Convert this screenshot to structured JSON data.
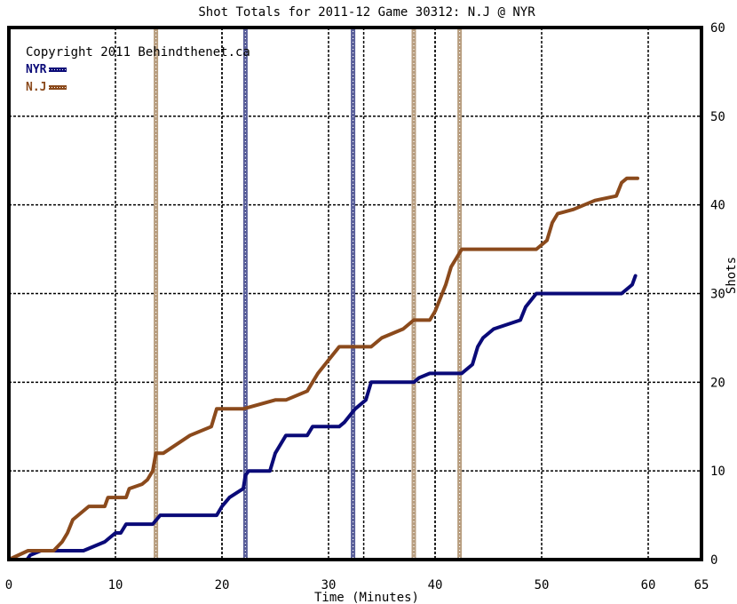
{
  "chart_data": {
    "type": "line",
    "title": "Shot Totals for 2011-12 Game 30312: N.J @ NYR",
    "copyright": "Copyright 2011 Behindthenet.ca",
    "xlabel": "Time (Minutes)",
    "ylabel": "Shots",
    "xlim": [
      0,
      65
    ],
    "ylim": [
      0,
      60
    ],
    "x_ticks": [
      "0",
      "10",
      "20",
      "30",
      "40",
      "50",
      "60",
      "65"
    ],
    "y_ticks": [
      "0",
      "10",
      "20",
      "30",
      "40",
      "50",
      "60"
    ],
    "grid": true,
    "legend_position": "top-left",
    "colors": {
      "NYR": "#0a0a78",
      "N.J": "#8b4a1c"
    },
    "series": [
      {
        "name": "NYR",
        "color": "#0a0a78",
        "points": [
          [
            0,
            0
          ],
          [
            1.7,
            0
          ],
          [
            2,
            0.5
          ],
          [
            3,
            1
          ],
          [
            7,
            1
          ],
          [
            8,
            1.5
          ],
          [
            9,
            2
          ],
          [
            9.5,
            2.5
          ],
          [
            10,
            3
          ],
          [
            10.5,
            3
          ],
          [
            11,
            4
          ],
          [
            13.5,
            4
          ],
          [
            14.2,
            5
          ],
          [
            19.5,
            5
          ],
          [
            20,
            6
          ],
          [
            20.7,
            7
          ],
          [
            22,
            8
          ],
          [
            22.2,
            9.5
          ],
          [
            22.5,
            10
          ],
          [
            24.5,
            10
          ],
          [
            25,
            12
          ],
          [
            26,
            14
          ],
          [
            28,
            14
          ],
          [
            28.5,
            15
          ],
          [
            31,
            15
          ],
          [
            31.5,
            15.5
          ],
          [
            32.5,
            17
          ],
          [
            33.5,
            18
          ],
          [
            34,
            20
          ],
          [
            38,
            20
          ],
          [
            38.5,
            20.5
          ],
          [
            39.5,
            21
          ],
          [
            42.5,
            21
          ],
          [
            43.5,
            22
          ],
          [
            44,
            24
          ],
          [
            44.5,
            25
          ],
          [
            45.5,
            26
          ],
          [
            48,
            27
          ],
          [
            48.5,
            28.5
          ],
          [
            49.5,
            30
          ],
          [
            57.5,
            30
          ],
          [
            58,
            30.5
          ],
          [
            58.5,
            31
          ],
          [
            58.8,
            32
          ]
        ]
      },
      {
        "name": "N.J",
        "color": "#8b4a1c",
        "points": [
          [
            0,
            0
          ],
          [
            1.8,
            1
          ],
          [
            4.2,
            1
          ],
          [
            5,
            2
          ],
          [
            5.5,
            3
          ],
          [
            6,
            4.5
          ],
          [
            6.5,
            5
          ],
          [
            7.5,
            6
          ],
          [
            9,
            6
          ],
          [
            9.3,
            7
          ],
          [
            11,
            7
          ],
          [
            11.3,
            8
          ],
          [
            12.5,
            8.5
          ],
          [
            13,
            9
          ],
          [
            13.5,
            10
          ],
          [
            13.8,
            12
          ],
          [
            14.5,
            12
          ],
          [
            17,
            14
          ],
          [
            19,
            15
          ],
          [
            19.5,
            17
          ],
          [
            22,
            17
          ],
          [
            25,
            18
          ],
          [
            26,
            18
          ],
          [
            28,
            19
          ],
          [
            28.5,
            20
          ],
          [
            29,
            21
          ],
          [
            30,
            22.5
          ],
          [
            31,
            24
          ],
          [
            33,
            24
          ],
          [
            34,
            24
          ],
          [
            35,
            25
          ],
          [
            37,
            26
          ],
          [
            37.5,
            26.5
          ],
          [
            38,
            27
          ],
          [
            39.5,
            27
          ],
          [
            40,
            28
          ],
          [
            40.5,
            29.5
          ],
          [
            41,
            31
          ],
          [
            41.5,
            33
          ],
          [
            42,
            34
          ],
          [
            42.5,
            35
          ],
          [
            49.5,
            35
          ],
          [
            50,
            35.5
          ],
          [
            50.5,
            36
          ],
          [
            51,
            38
          ],
          [
            51.5,
            39
          ],
          [
            53,
            39.5
          ],
          [
            55,
            40.5
          ],
          [
            57,
            41
          ],
          [
            57.5,
            42.5
          ],
          [
            58,
            43
          ],
          [
            59,
            43
          ]
        ]
      }
    ],
    "highlight_lines": [
      {
        "x": 13.8,
        "team": "N.J"
      },
      {
        "x": 22.2,
        "team": "NYR"
      },
      {
        "x": 32.3,
        "team": "NYR"
      },
      {
        "x": 38.0,
        "team": "N.J"
      },
      {
        "x": 42.3,
        "team": "N.J"
      }
    ],
    "dashed_vertical_lines": [
      13.8,
      20.0,
      22.2,
      33.3,
      40.0
    ],
    "dashed_horizontal_lines": [
      10,
      20,
      30,
      40,
      50
    ]
  }
}
